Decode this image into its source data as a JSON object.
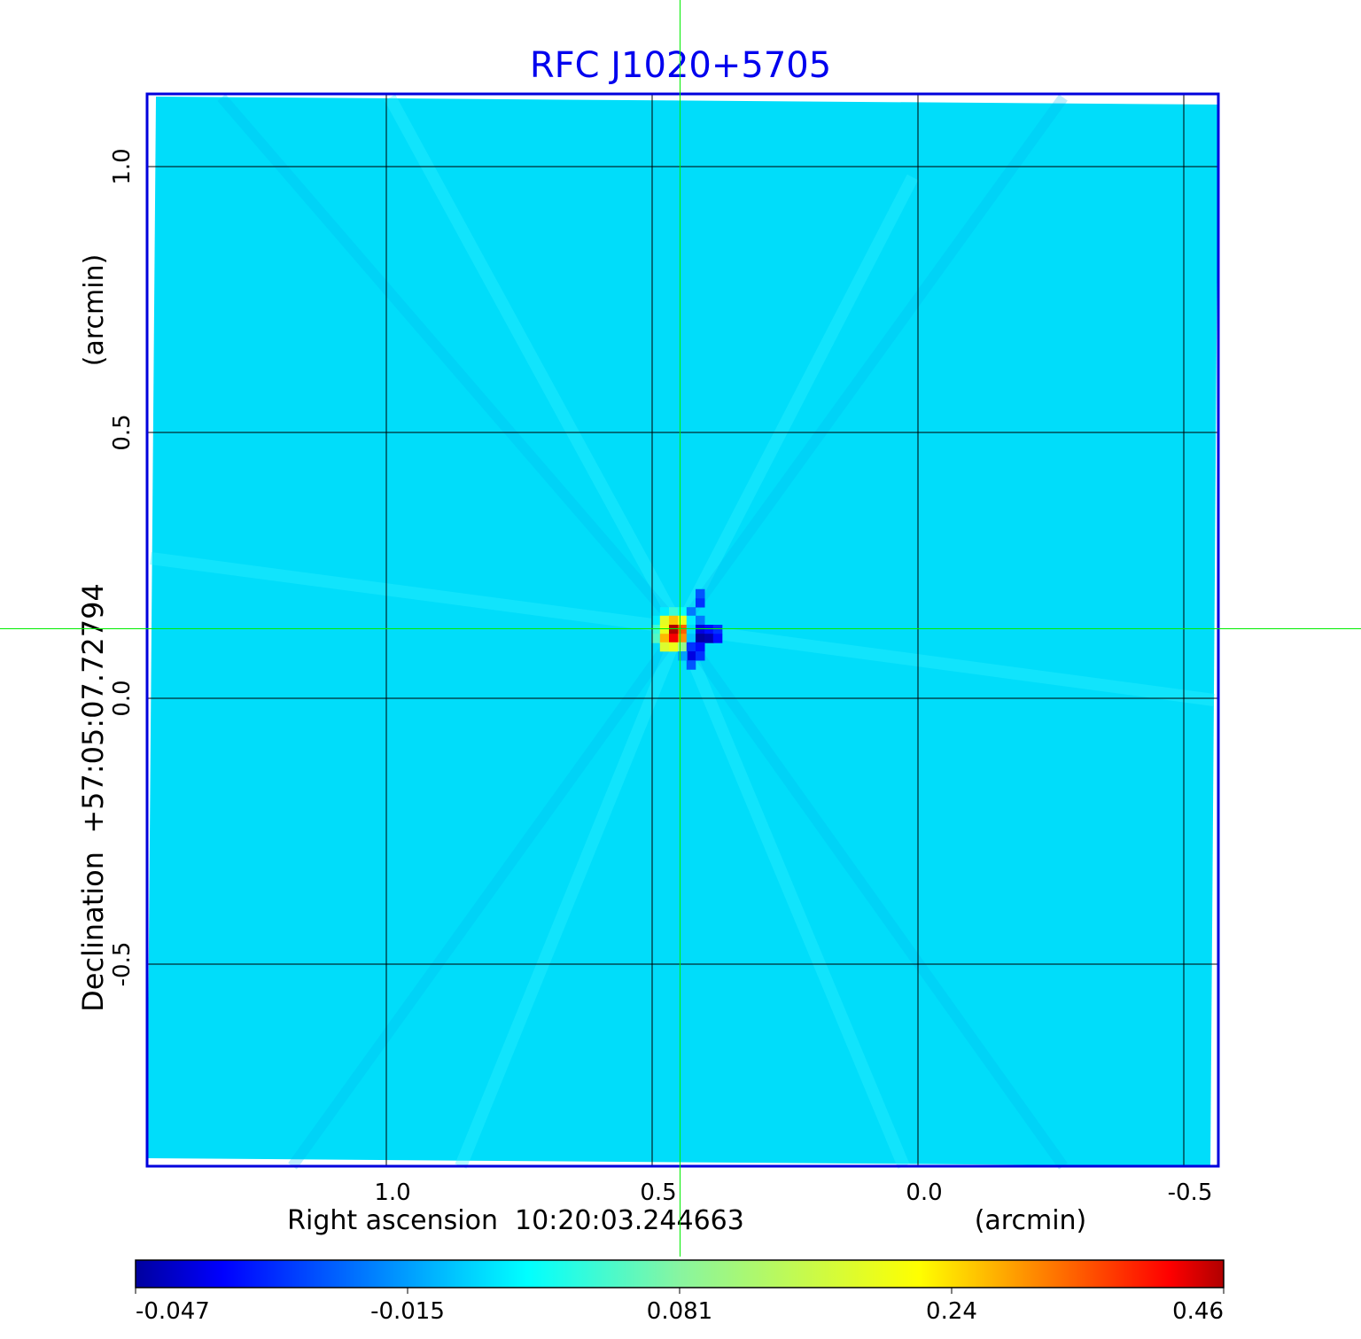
{
  "chart_data": {
    "type": "heatmap",
    "title": "RFC J1020+5705",
    "xlabel": "Right ascension  10:20:03.244663",
    "xunit": "(arcmin)",
    "ylabel": "Declination  +57:05:07.72794",
    "yunit": "(arcmin)",
    "xlim": [
      1.45,
      -0.565
    ],
    "ylim": [
      -0.88,
      1.135
    ],
    "xticks": [
      {
        "v": 1.0,
        "label": "1.0"
      },
      {
        "v": 0.5,
        "label": "0.5"
      },
      {
        "v": 0.0,
        "label": "0.0"
      },
      {
        "v": -0.5,
        "label": "-0.5"
      }
    ],
    "yticks": [
      {
        "v": 1.0,
        "label": "1.0"
      },
      {
        "v": 0.5,
        "label": "0.5"
      },
      {
        "v": 0.0,
        "label": "0.0"
      },
      {
        "v": -0.5,
        "label": "-0.5"
      }
    ],
    "grid": true,
    "crosshair": {
      "x": 0.448,
      "y": 0.132
    },
    "background_value": -0.005,
    "cell_size_arcmin": 0.0167,
    "cells": [
      [
        0.477,
        0.163,
        0.02
      ],
      [
        0.46,
        0.163,
        0.05
      ],
      [
        0.443,
        0.163,
        0.03
      ],
      [
        0.427,
        0.163,
        -0.02
      ],
      [
        0.41,
        0.18,
        -0.03
      ],
      [
        0.41,
        0.197,
        -0.025
      ],
      [
        0.493,
        0.147,
        0.02
      ],
      [
        0.477,
        0.147,
        0.19
      ],
      [
        0.46,
        0.147,
        0.26
      ],
      [
        0.443,
        0.147,
        0.2
      ],
      [
        0.427,
        0.147,
        0.02
      ],
      [
        0.41,
        0.147,
        -0.02
      ],
      [
        0.493,
        0.13,
        0.05
      ],
      [
        0.477,
        0.13,
        0.2
      ],
      [
        0.46,
        0.13,
        0.46
      ],
      [
        0.443,
        0.13,
        0.34
      ],
      [
        0.427,
        0.13,
        0.01
      ],
      [
        0.41,
        0.13,
        -0.04
      ],
      [
        0.393,
        0.13,
        -0.035
      ],
      [
        0.377,
        0.13,
        -0.03
      ],
      [
        0.493,
        0.113,
        0.06
      ],
      [
        0.477,
        0.113,
        0.27
      ],
      [
        0.46,
        0.113,
        0.42
      ],
      [
        0.443,
        0.113,
        0.3
      ],
      [
        0.427,
        0.113,
        0.0
      ],
      [
        0.41,
        0.113,
        -0.047
      ],
      [
        0.393,
        0.113,
        -0.045
      ],
      [
        0.377,
        0.113,
        -0.035
      ],
      [
        0.477,
        0.097,
        0.18
      ],
      [
        0.46,
        0.097,
        0.2
      ],
      [
        0.443,
        0.097,
        0.1
      ],
      [
        0.427,
        0.097,
        -0.03
      ],
      [
        0.41,
        0.097,
        -0.035
      ],
      [
        0.427,
        0.08,
        -0.04
      ],
      [
        0.41,
        0.08,
        -0.03
      ],
      [
        0.443,
        0.08,
        -0.015
      ],
      [
        0.427,
        0.063,
        -0.025
      ]
    ],
    "colorbar": {
      "colormap": "jet",
      "ticks": [
        {
          "v": -0.047,
          "label": "-0.047"
        },
        {
          "v": -0.015,
          "label": "-0.015"
        },
        {
          "v": 0.081,
          "label": "0.081"
        },
        {
          "v": 0.24,
          "label": "0.24"
        },
        {
          "v": 0.46,
          "label": "0.46"
        }
      ]
    },
    "colors": {
      "title": "#0000ee",
      "crosshair": "#00ee00",
      "frame": "#0000dd",
      "grid": "#000000"
    }
  }
}
